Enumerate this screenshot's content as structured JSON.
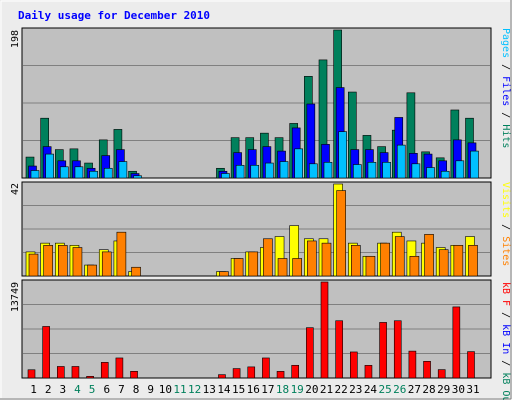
{
  "title": "Daily usage for December 2010",
  "colors": {
    "background": "#ececec",
    "panel": "#c0c0c0",
    "hits": "#00805c",
    "files": "#0000ff",
    "pages": "#00c0ff",
    "sites": "#ff8000",
    "visits": "#ffff00",
    "kbytes": "#ff0000",
    "kb_in": "#0000ff",
    "kb_out": "#00805c",
    "weekday_label": "#000000",
    "weekend_label": "#00805c",
    "title": "#0000ff"
  },
  "side_labels": {
    "top": [
      {
        "text": "Pages",
        "color": "#00c0ff"
      },
      {
        "text": " / ",
        "color": "#000000"
      },
      {
        "text": "Files",
        "color": "#0000ff"
      },
      {
        "text": " / ",
        "color": "#000000"
      },
      {
        "text": "Hits",
        "color": "#00805c"
      }
    ],
    "middle": [
      {
        "text": "Visits",
        "color": "#ffff00"
      },
      {
        "text": " / ",
        "color": "#000000"
      },
      {
        "text": "Sites",
        "color": "#ff8000"
      }
    ],
    "bottom": [
      {
        "text": "kB F",
        "color": "#ff0000"
      },
      {
        "text": " / ",
        "color": "#000000"
      },
      {
        "text": "kB In",
        "color": "#0000ff"
      },
      {
        "text": " / ",
        "color": "#000000"
      },
      {
        "text": "kB Out",
        "color": "#00805c"
      }
    ]
  },
  "chart_data": [
    {
      "type": "bar",
      "title": "Daily usage for December 2010",
      "ymax_label": "198",
      "ylim": [
        0,
        198
      ],
      "grid": true,
      "categories": [
        "1",
        "2",
        "3",
        "4",
        "5",
        "6",
        "7",
        "8",
        "9",
        "10",
        "11",
        "12",
        "13",
        "14",
        "15",
        "16",
        "17",
        "18",
        "19",
        "20",
        "21",
        "22",
        "23",
        "24",
        "25",
        "26",
        "27",
        "28",
        "29",
        "30",
        "31"
      ],
      "weekend_days": [
        "4",
        "5",
        "11",
        "12",
        "18",
        "19",
        "25",
        "26"
      ],
      "series": [
        {
          "name": "Hits",
          "values": [
            28,
            80,
            38,
            39,
            20,
            51,
            65,
            9,
            0,
            0,
            0,
            0,
            0,
            13,
            54,
            54,
            60,
            54,
            73,
            136,
            158,
            198,
            115,
            57,
            42,
            64,
            114,
            35,
            27,
            91,
            80
          ]
        },
        {
          "name": "Files",
          "values": [
            16,
            42,
            23,
            23,
            13,
            30,
            38,
            6,
            0,
            0,
            0,
            0,
            0,
            9,
            34,
            38,
            42,
            36,
            67,
            99,
            45,
            121,
            38,
            38,
            34,
            81,
            33,
            32,
            23,
            51,
            47
          ]
        },
        {
          "name": "Pages",
          "values": [
            10,
            32,
            15,
            15,
            9,
            13,
            22,
            3,
            0,
            0,
            0,
            0,
            0,
            6,
            17,
            17,
            20,
            22,
            39,
            19,
            21,
            62,
            18,
            21,
            21,
            44,
            19,
            14,
            9,
            23,
            36
          ]
        }
      ]
    },
    {
      "type": "bar",
      "ymax_label": "42",
      "ylim": [
        0,
        42
      ],
      "grid": true,
      "categories": [
        "1",
        "2",
        "3",
        "4",
        "5",
        "6",
        "7",
        "8",
        "9",
        "10",
        "11",
        "12",
        "13",
        "14",
        "15",
        "16",
        "17",
        "18",
        "19",
        "20",
        "21",
        "22",
        "23",
        "24",
        "25",
        "26",
        "27",
        "28",
        "29",
        "30",
        "31"
      ],
      "series": [
        {
          "name": "Visits",
          "values": [
            11,
            15,
            15,
            14,
            5,
            12,
            16,
            2,
            0,
            0,
            0,
            0,
            0,
            2,
            8,
            11,
            13,
            18,
            23,
            17,
            17,
            42,
            15,
            9,
            15,
            20,
            16,
            15,
            13,
            14,
            18
          ]
        },
        {
          "name": "Sites",
          "values": [
            10,
            14,
            14,
            13,
            5,
            11,
            20,
            4,
            0,
            0,
            0,
            0,
            0,
            2,
            8,
            11,
            17,
            8,
            8,
            16,
            15,
            39,
            14,
            9,
            15,
            18,
            9,
            19,
            12,
            14,
            14
          ]
        }
      ]
    },
    {
      "type": "bar",
      "ymax_label": "13749",
      "ylim": [
        0,
        13749
      ],
      "grid": true,
      "categories": [
        "1",
        "2",
        "3",
        "4",
        "5",
        "6",
        "7",
        "8",
        "9",
        "10",
        "11",
        "12",
        "13",
        "14",
        "15",
        "16",
        "17",
        "18",
        "19",
        "20",
        "21",
        "22",
        "23",
        "24",
        "25",
        "26",
        "27",
        "28",
        "29",
        "30",
        "31"
      ],
      "series": [
        {
          "name": "kB F",
          "values": [
            1180,
            7380,
            1650,
            1650,
            240,
            2240,
            2870,
            960,
            0,
            0,
            0,
            0,
            0,
            480,
            1350,
            1590,
            2870,
            950,
            1820,
            7210,
            13749,
            8200,
            3730,
            1810,
            7960,
            8200,
            3850,
            2390,
            1200,
            10180,
            3780
          ]
        }
      ]
    }
  ]
}
